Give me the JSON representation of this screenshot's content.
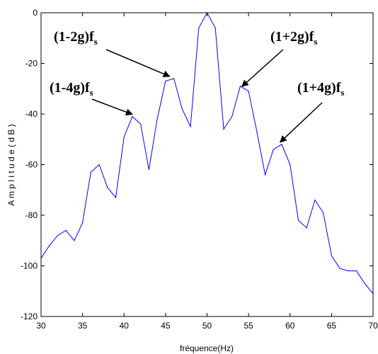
{
  "chart_data": {
    "type": "line",
    "xlabel": "fréquence(Hz)",
    "ylabel": "A m p l i t u d e ( d B )",
    "xlim": [
      30,
      70
    ],
    "ylim": [
      -120,
      0
    ],
    "xticks": [
      "30",
      "35",
      "40",
      "45",
      "50",
      "55",
      "60",
      "65",
      "70"
    ],
    "yticks": [
      "0",
      "-20",
      "-40",
      "-60",
      "-80",
      "-100",
      "-120"
    ],
    "grid": false,
    "line_color": "#0000ff",
    "series": [
      {
        "x": [
          30,
          31,
          32,
          33,
          34,
          35,
          36,
          37,
          38,
          39,
          40,
          41,
          42,
          43,
          44,
          45,
          46,
          47,
          48,
          49,
          50,
          51,
          52,
          53,
          54,
          55,
          56,
          57,
          58,
          59,
          60,
          61,
          62,
          63,
          64,
          65,
          66,
          67,
          68,
          69,
          70
        ],
        "y": [
          -97,
          -92,
          -88,
          -86,
          -90,
          -83,
          -63,
          -60,
          -69,
          -73,
          -49,
          -41,
          -44,
          -62,
          -42,
          -27,
          -26,
          -38,
          -45,
          -6,
          0,
          -6,
          -46,
          -41,
          -29,
          -31,
          -47,
          -64,
          -54,
          -52,
          -60,
          -82,
          -85,
          -74,
          -79,
          -96,
          -101,
          -102,
          -102,
          -107,
          -111
        ]
      }
    ],
    "annotations": [
      {
        "label": "(1-4g)f",
        "sub": "s",
        "arrow_to": [
          41,
          -41
        ]
      },
      {
        "label": "(1-2g)f",
        "sub": "s",
        "arrow_to": [
          45.5,
          -26
        ]
      },
      {
        "label": "(1+2g)f",
        "sub": "s",
        "arrow_to": [
          54.2,
          -30
        ]
      },
      {
        "label": "(1+4g)f",
        "sub": "s",
        "arrow_to": [
          58.8,
          -52
        ]
      }
    ]
  }
}
